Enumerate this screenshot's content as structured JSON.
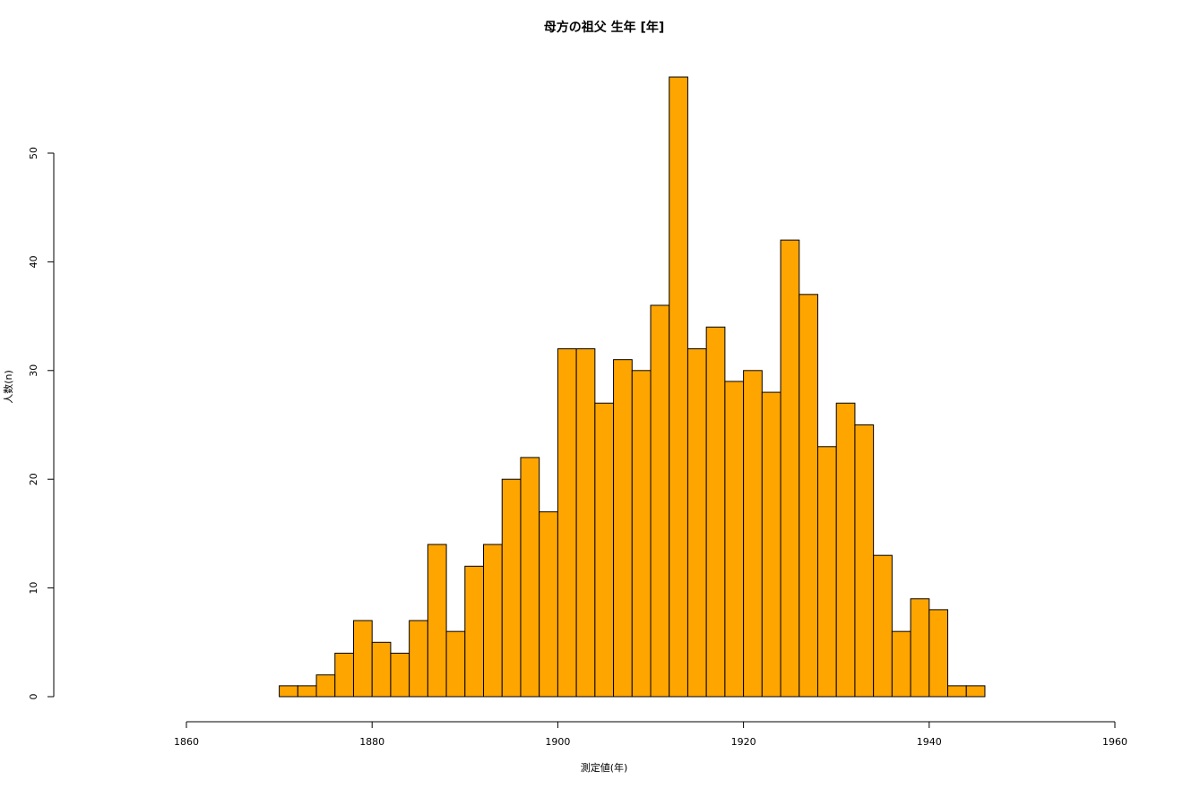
{
  "chart_data": {
    "type": "bar",
    "title": "母方の祖父 生年 [年]",
    "xlabel": "測定値(年)",
    "ylabel": "人数(n)",
    "xlim": [
      1860,
      1960
    ],
    "ylim": [
      0,
      57
    ],
    "x_ticks": [
      1860,
      1880,
      1900,
      1920,
      1940,
      1960
    ],
    "y_ticks": [
      0,
      10,
      20,
      30,
      40,
      50
    ],
    "bin_width": 2,
    "bin_start": 1870,
    "values": [
      1,
      1,
      2,
      4,
      7,
      5,
      4,
      7,
      14,
      6,
      12,
      14,
      20,
      22,
      17,
      32,
      32,
      27,
      31,
      30,
      36,
      57,
      32,
      34,
      29,
      30,
      28,
      42,
      37,
      23,
      27,
      25,
      13,
      6,
      9,
      8,
      1,
      1
    ],
    "bar_color": "#FFA500",
    "grid": false,
    "legend": "none"
  }
}
